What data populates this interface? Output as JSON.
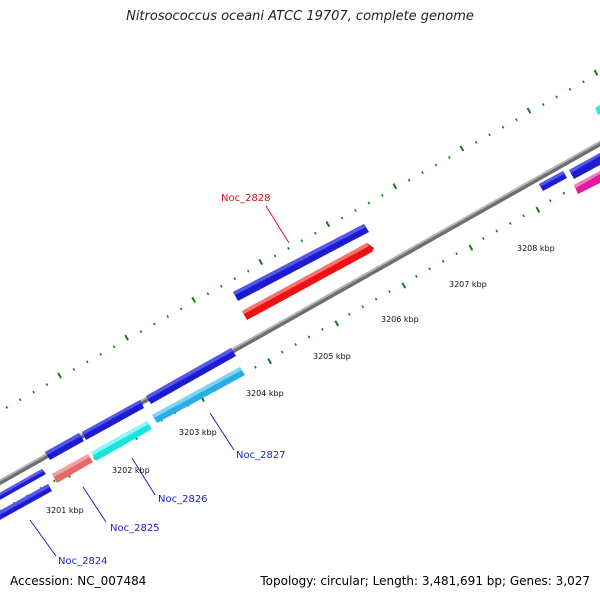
{
  "title": "Nitrosococcus oceani ATCC 19707, complete genome",
  "footer": {
    "accession": "Accession: NC_007484",
    "summary": "Topology: circular; Length: 3,481,691 bp; Genes: 3,027"
  },
  "colors": {
    "background": "#ffffff",
    "backbone": "#8a8a8a",
    "tick": "#1a7a1a",
    "label_blue": "#1b22c7",
    "label_red": "#d11313"
  },
  "ticks": [
    {
      "label": "3201 kbp"
    },
    {
      "label": "3202 kbp"
    },
    {
      "label": "3203 kbp"
    },
    {
      "label": "3204 kbp"
    },
    {
      "label": "3205 kbp"
    },
    {
      "label": "3206 kbp"
    },
    {
      "label": "3207 kbp"
    },
    {
      "label": "3208 kbp"
    }
  ],
  "gene_labels": [
    {
      "text": "Noc_2824",
      "color": "blue"
    },
    {
      "text": "Noc_2825",
      "color": "blue"
    },
    {
      "text": "Noc_2826",
      "color": "blue"
    },
    {
      "text": "Noc_2827",
      "color": "blue"
    },
    {
      "text": "Noc_2828",
      "color": "red"
    }
  ]
}
